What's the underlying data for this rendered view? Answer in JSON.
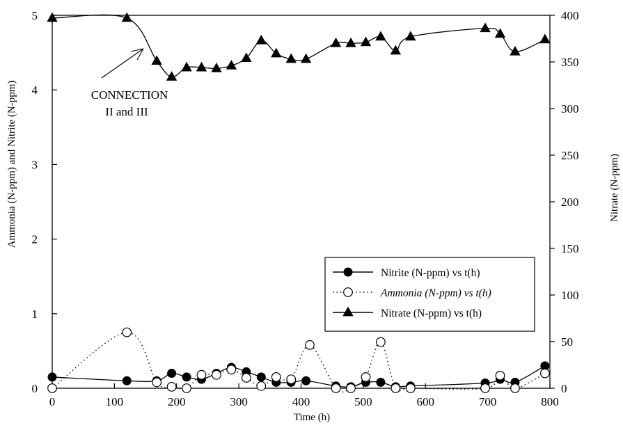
{
  "chart_data": {
    "type": "line",
    "xlabel": "Time (h)",
    "ylabel_left": "Ammonia (N-ppm) and Nitrite (N-ppm)",
    "ylabel_right": "Nitrate (N-ppm)",
    "xlim": [
      0,
      800
    ],
    "ylim_left": [
      0,
      5
    ],
    "ylim_right": [
      0,
      400
    ],
    "x_ticks": [
      "0",
      "100",
      "200",
      "300",
      "400",
      "500",
      "600",
      "700",
      "800"
    ],
    "y_left_ticks": [
      "0",
      "1",
      "2",
      "3",
      "4",
      "5"
    ],
    "y_right_ticks": [
      "0",
      "50",
      "100",
      "150",
      "200",
      "250",
      "300",
      "350",
      "400"
    ],
    "grid": false,
    "legend_position": "right-middle",
    "annotation": {
      "line1": "CONNECTION",
      "line2": "II and III"
    },
    "series": [
      {
        "name": "Nitrite (N-ppm) vs t(h)",
        "axis": "left",
        "marker": "filled-circle",
        "line_style": "solid",
        "x": [
          0,
          120,
          168,
          192,
          216,
          240,
          264,
          288,
          312,
          336,
          360,
          384,
          408,
          456,
          480,
          504,
          528,
          552,
          576,
          696,
          720,
          744,
          792
        ],
        "y": [
          0.15,
          0.1,
          0.1,
          0.2,
          0.15,
          0.12,
          0.2,
          0.28,
          0.22,
          0.15,
          0.08,
          0.08,
          0.1,
          0.03,
          0.02,
          0.08,
          0.08,
          0.02,
          0.03,
          0.07,
          0.12,
          0.08,
          0.3
        ]
      },
      {
        "name": "Ammonia (N-ppm) vs t(h)",
        "axis": "left",
        "marker": "open-circle",
        "line_style": "dotted",
        "x": [
          0,
          120,
          168,
          192,
          216,
          240,
          264,
          288,
          312,
          336,
          360,
          384,
          414,
          456,
          480,
          504,
          528,
          552,
          576,
          696,
          720,
          744,
          792
        ],
        "y": [
          0.0,
          0.75,
          0.08,
          0.02,
          0.0,
          0.18,
          0.18,
          0.25,
          0.14,
          0.03,
          0.15,
          0.12,
          0.58,
          0.0,
          0.0,
          0.15,
          0.62,
          0.0,
          0.0,
          0.0,
          0.17,
          0.0,
          0.2
        ]
      },
      {
        "name": "Nitrate (N-ppm) vs t(h)",
        "axis": "right",
        "marker": "filled-triangle",
        "line_style": "solid",
        "x": [
          0,
          120,
          168,
          192,
          216,
          240,
          264,
          288,
          312,
          336,
          360,
          384,
          408,
          456,
          480,
          504,
          528,
          552,
          576,
          696,
          720,
          744,
          792
        ],
        "y": [
          397,
          397,
          351,
          334,
          344,
          344,
          343,
          346,
          354,
          373,
          359,
          353,
          353,
          370,
          370,
          371,
          377,
          362,
          377,
          386,
          380,
          361,
          374
        ]
      }
    ]
  }
}
